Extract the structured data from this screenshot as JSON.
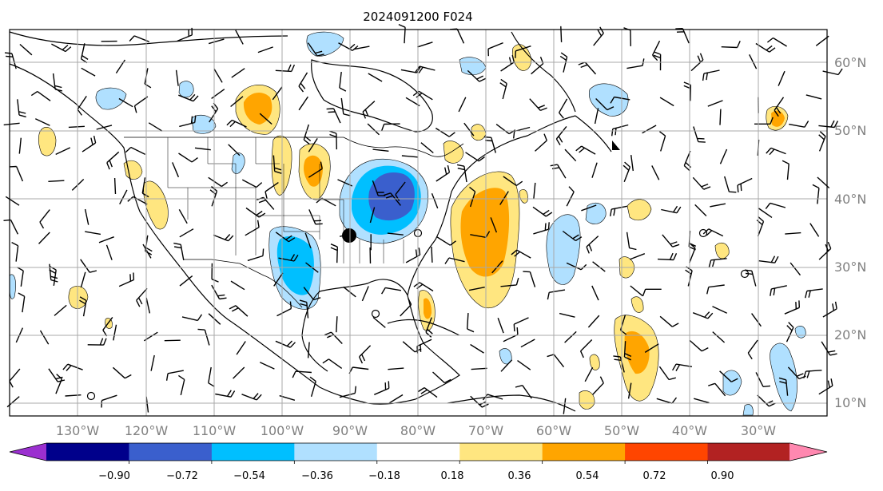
{
  "title": "2024091200 F024",
  "map": {
    "lon_labels": [
      "130°W",
      "120°W",
      "110°W",
      "100°W",
      "90°W",
      "80°W",
      "70°W",
      "60°W",
      "50°W",
      "40°W",
      "30°W"
    ],
    "lat_labels": [
      "10°N",
      "20°N",
      "30°N",
      "40°N",
      "50°N",
      "60°N"
    ]
  },
  "colorbar": {
    "ticks": [
      "−0.90",
      "−0.72",
      "−0.54",
      "−0.36",
      "−0.18",
      "0.18",
      "0.36",
      "0.54",
      "0.72",
      "0.90"
    ],
    "colors": [
      "#9b30d0",
      "#00008b",
      "#3a5fcd",
      "#00bfff",
      "#b0e0ff",
      "#ffffff",
      "#ffe680",
      "#ffa500",
      "#ff4500",
      "#b22222",
      "#ff88b0"
    ]
  },
  "colors": {
    "grid": "#a9a9a9",
    "frame": "#000000",
    "label_gray": "#808080"
  }
}
